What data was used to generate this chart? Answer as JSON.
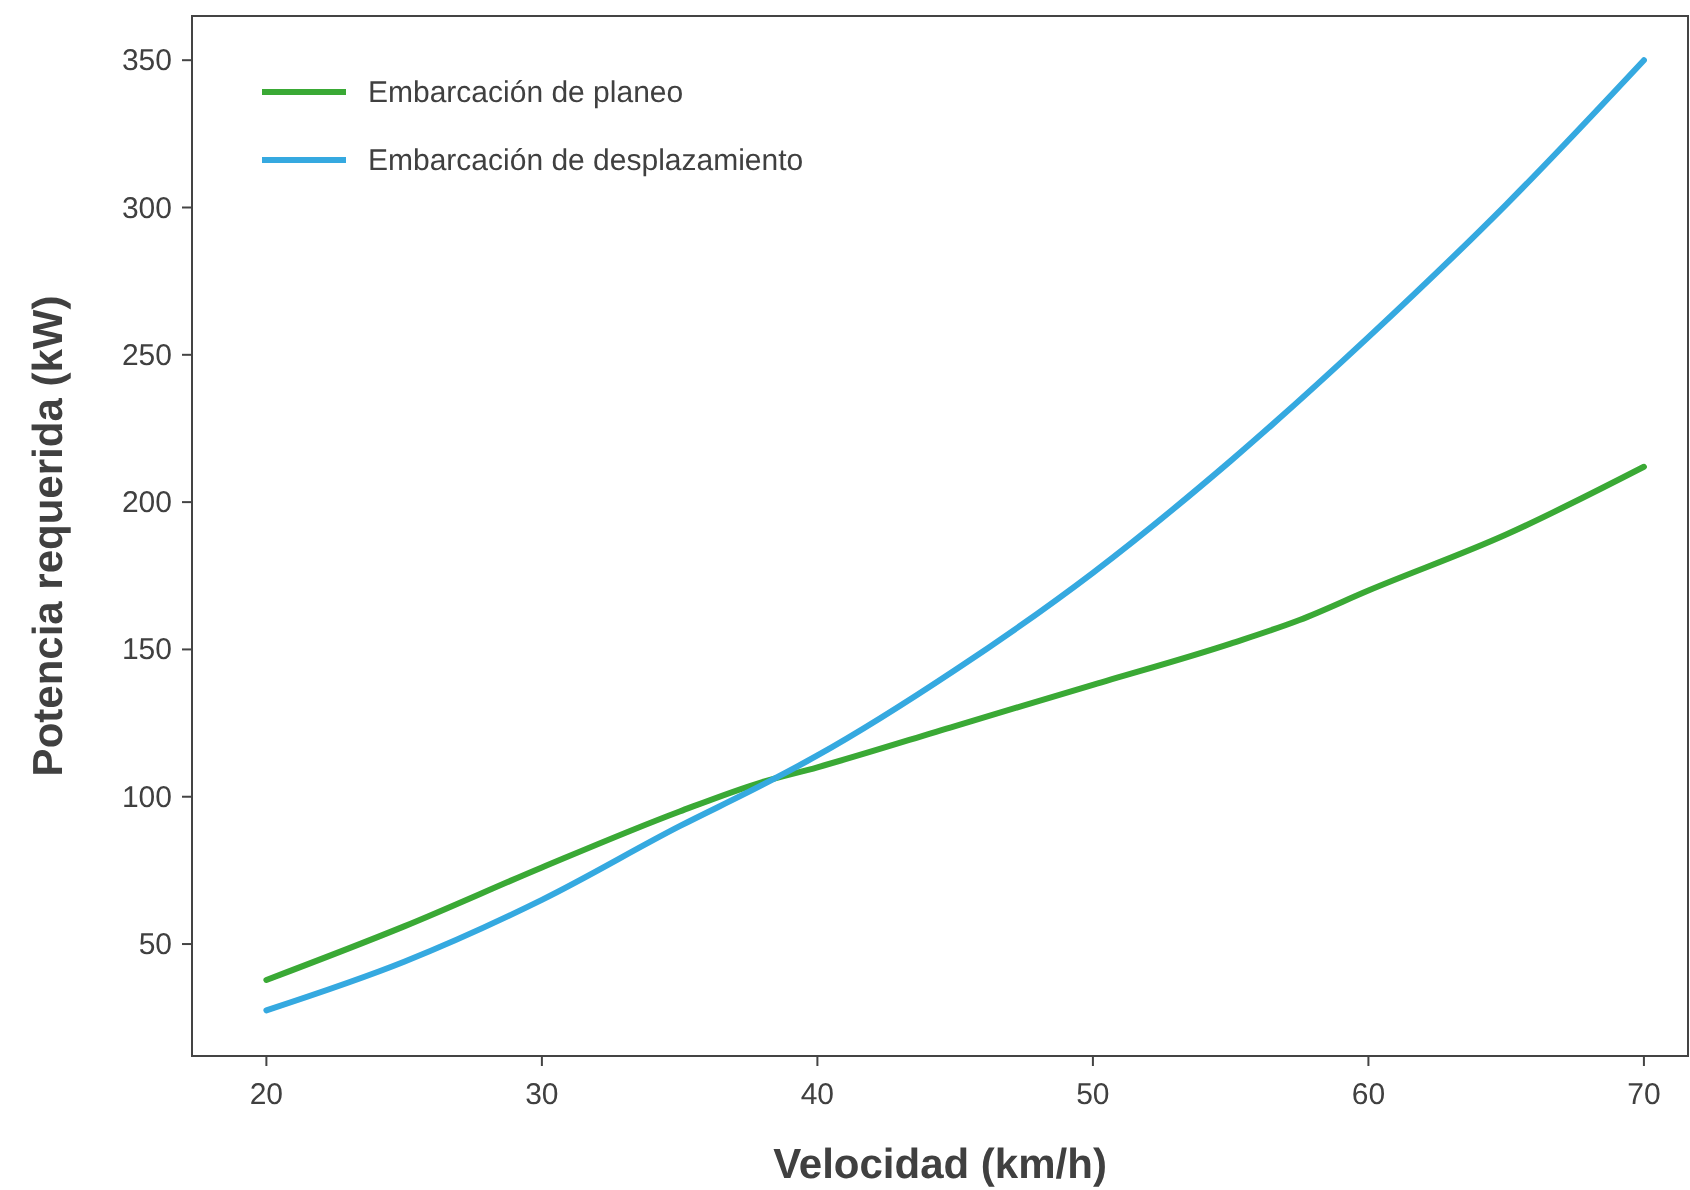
{
  "chart_data": {
    "type": "line",
    "xlabel": "Velocidad (km/h)",
    "ylabel": "Potencia requerida (kW)",
    "xlim": [
      17.3,
      71.6
    ],
    "ylim": [
      12,
      365
    ],
    "xticks": [
      20,
      30,
      40,
      50,
      60,
      70
    ],
    "yticks": [
      50,
      100,
      150,
      200,
      250,
      300,
      350
    ],
    "legend": "top left",
    "grid": false,
    "marker": "none",
    "line_style": "solid",
    "series": [
      {
        "name": "Embarcación de planeo",
        "color": "#3aa935",
        "x": [
          20,
          25,
          30,
          35,
          38,
          40,
          45,
          50,
          55,
          57.5,
          60,
          65,
          70
        ],
        "values": [
          37.8,
          56,
          76,
          95,
          105,
          110,
          124,
          138,
          152,
          160,
          170,
          189,
          212
        ]
      },
      {
        "name": "Embarcación de desplazamiento",
        "color": "#35a9e0",
        "x": [
          20,
          25,
          30,
          35,
          38,
          40,
          45,
          50,
          55,
          60,
          65,
          70
        ],
        "values": [
          27.5,
          44,
          65,
          90,
          104,
          114,
          143,
          176,
          214,
          256,
          301,
          350
        ]
      }
    ]
  }
}
